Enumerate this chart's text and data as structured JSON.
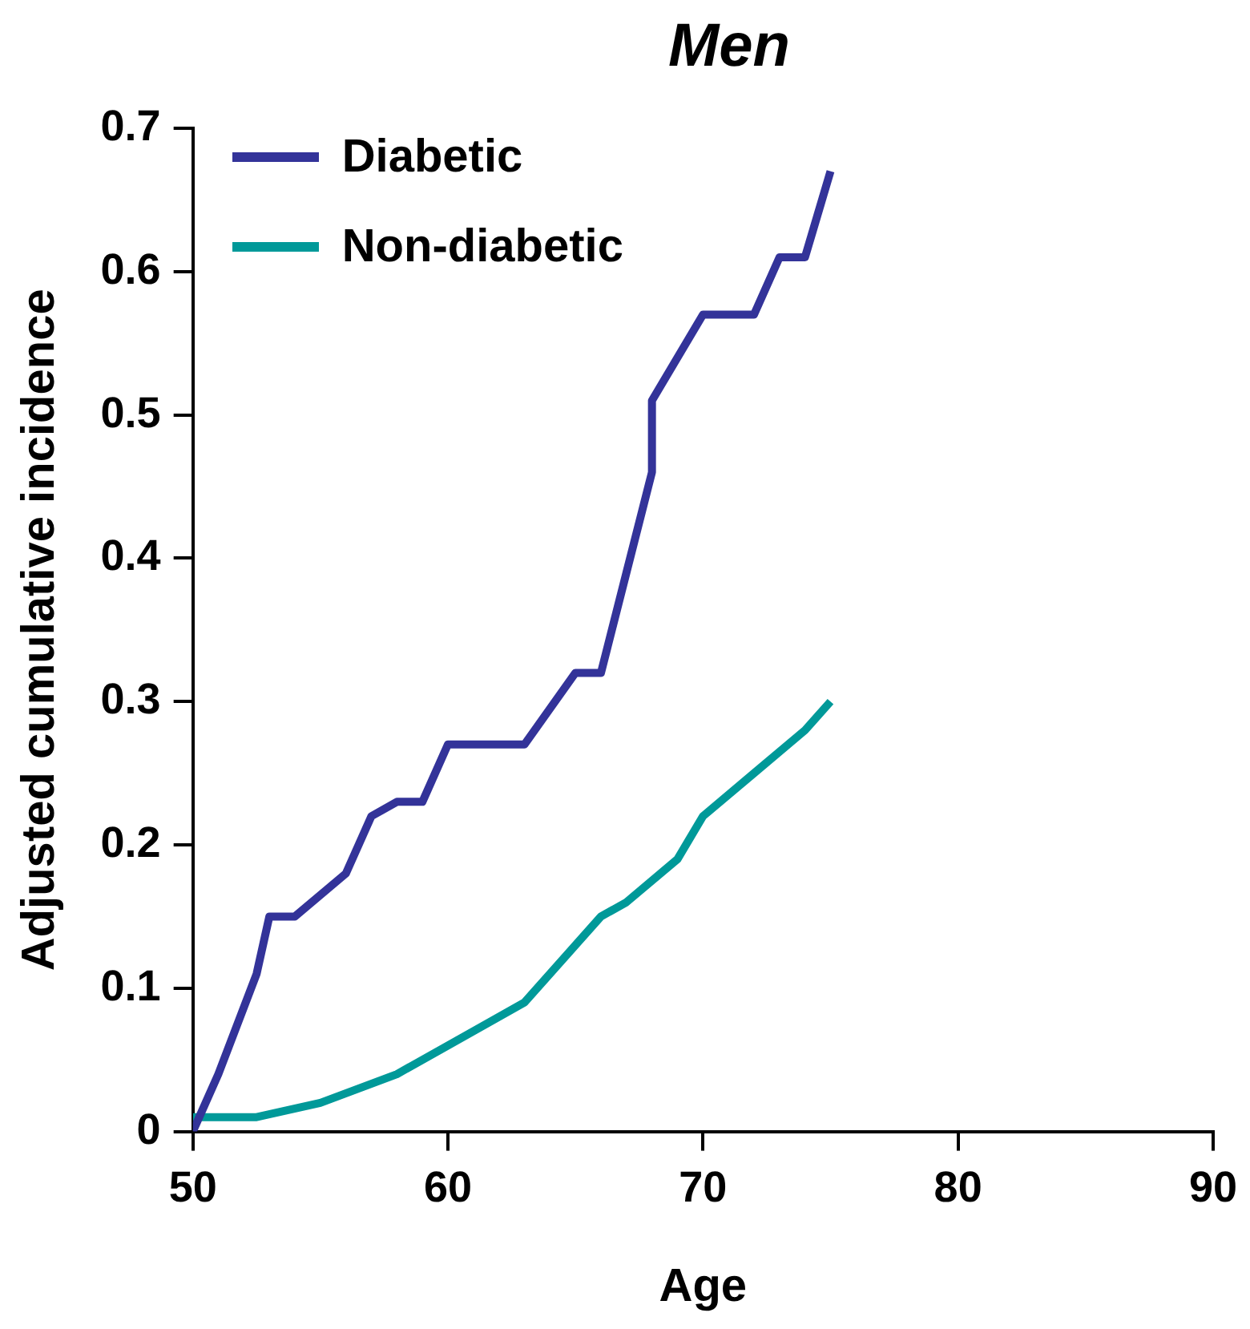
{
  "chart_data": {
    "type": "line",
    "title": "Men",
    "xlabel": "Age",
    "ylabel": "Adjusted cumulative incidence",
    "xlim": [
      50,
      90
    ],
    "xticks": [
      50,
      60,
      70,
      80,
      90
    ],
    "ylim": [
      0,
      0.7
    ],
    "yticks": [
      0,
      0.1,
      0.2,
      0.3,
      0.4,
      0.5,
      0.6,
      0.7
    ],
    "grid": false,
    "legend": "top left",
    "marker": "none",
    "line_style": "solid",
    "series": [
      {
        "name": "Diabetic",
        "color": "#333399",
        "x": [
          50,
          51,
          52.5,
          53,
          54,
          56,
          57,
          58,
          59,
          60,
          63,
          65,
          66,
          67,
          68,
          68,
          70,
          72,
          73,
          74,
          75
        ],
        "values": [
          0,
          0.04,
          0.11,
          0.15,
          0.15,
          0.18,
          0.22,
          0.23,
          0.23,
          0.27,
          0.27,
          0.32,
          0.32,
          0.39,
          0.46,
          0.51,
          0.57,
          0.57,
          0.61,
          0.61,
          0.67
        ]
      },
      {
        "name": "Non-diabetic",
        "color": "#009999",
        "x": [
          50,
          52.5,
          55,
          58,
          60,
          63,
          65,
          66,
          67,
          69,
          70,
          72,
          74,
          75
        ],
        "values": [
          0.01,
          0.01,
          0.02,
          0.04,
          0.06,
          0.09,
          0.13,
          0.15,
          0.16,
          0.19,
          0.22,
          0.25,
          0.28,
          0.3
        ]
      }
    ]
  }
}
